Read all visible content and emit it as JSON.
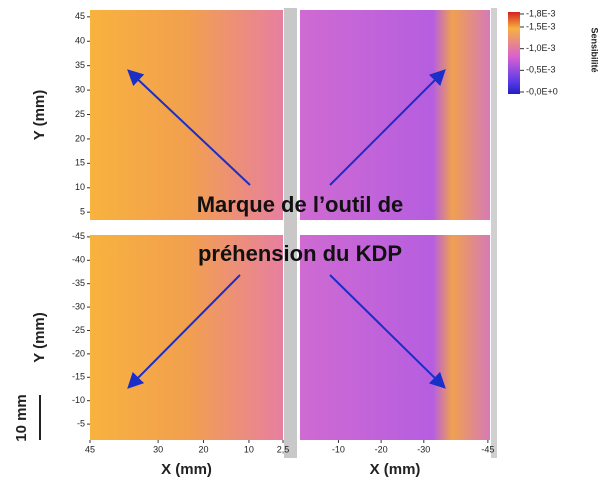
{
  "chart_data": [
    {
      "type": "heatmap",
      "ylabel": "Y (mm)",
      "ylim": [
        3.4,
        46.4
      ],
      "yticks": [
        5,
        10,
        15,
        20,
        25,
        30,
        35,
        40,
        45
      ]
    },
    {
      "type": "heatmap"
    },
    {
      "type": "heatmap",
      "ylabel": "Y (mm)",
      "xlabel": "X (mm)",
      "ylim": [
        -1.6,
        -45.4
      ],
      "yticks": [
        -5,
        -10,
        -15,
        -20,
        -25,
        -30,
        -35,
        -40,
        -45
      ],
      "xlim": [
        45,
        2.5
      ],
      "xticks": [
        45,
        30,
        20,
        10,
        {
          "value": 2.5,
          "label": "2,5"
        }
      ]
    },
    {
      "type": "heatmap",
      "xlabel": "X (mm)",
      "xlim": [
        -1,
        -45.5
      ],
      "xticks": [
        -10,
        -20,
        -30,
        -45
      ]
    }
  ],
  "colorbar": {
    "label": "Sensibilité",
    "lim": [
      -0.0018,
      0
    ],
    "ticks": [
      {
        "value": -0.0018,
        "label": "-1,8E-3"
      },
      {
        "value": -0.0015,
        "label": "-1,5E-3"
      },
      {
        "value": -0.001,
        "label": "-1,0E-3"
      },
      {
        "value": -0.0005,
        "label": "-0,5E-3"
      },
      {
        "value": 0,
        "label": "-0,0E+0"
      }
    ]
  },
  "annotation": [
    "Marque de l’outil de",
    "préhension du KDP"
  ],
  "scale_bar": "10 mm"
}
